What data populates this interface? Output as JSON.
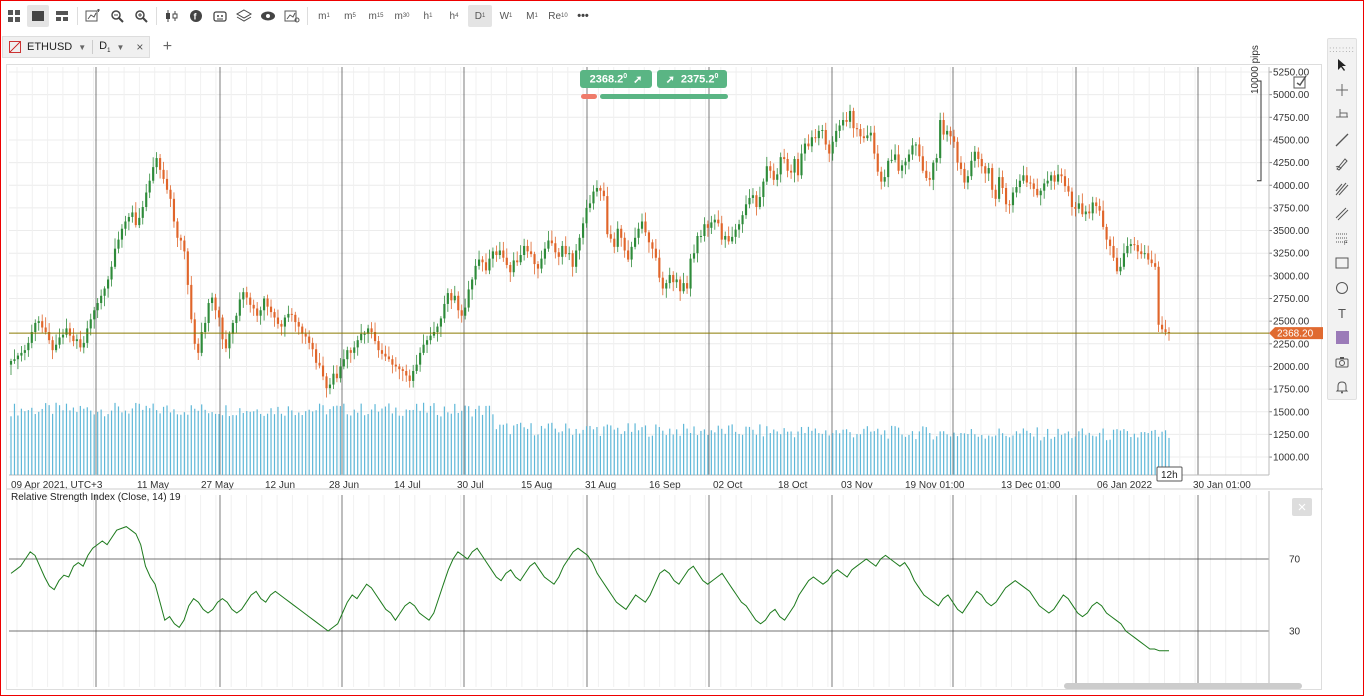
{
  "toolbar": {
    "timeframes": [
      {
        "main": "m",
        "sub": "1"
      },
      {
        "main": "m",
        "sub": "5"
      },
      {
        "main": "m",
        "sub": "15"
      },
      {
        "main": "m",
        "sub": "30"
      },
      {
        "main": "h",
        "sub": "1"
      },
      {
        "main": "h",
        "sub": "4"
      },
      {
        "main": "D",
        "sub": "1"
      },
      {
        "main": "W",
        "sub": "1"
      },
      {
        "main": "M",
        "sub": "1"
      },
      {
        "main": "Re",
        "sub": "10"
      }
    ],
    "active_timeframe_index": 6,
    "more_label": "•••"
  },
  "tab": {
    "symbol": "ETHUSD",
    "timeframe_main": "D",
    "timeframe_sub": "1",
    "caret": "▼",
    "close": "×",
    "add": "+"
  },
  "trade": {
    "sell_price": "2368.2",
    "sell_sup": "0",
    "buy_price": "2375.2",
    "buy_sup": "0"
  },
  "price_axis": {
    "ticks": [
      "5250.00",
      "5000.00",
      "4750.00",
      "4500.00",
      "4250.00",
      "4000.00",
      "3750.00",
      "3500.00",
      "3250.00",
      "3000.00",
      "2750.00",
      "2500.00",
      "2250.00",
      "2000.00",
      "1750.00",
      "1500.00",
      "1250.00",
      "1000.00"
    ],
    "current_price": "2368.20",
    "pips_label": "10000 pips"
  },
  "time_axis": {
    "labels": [
      "09 Apr 2021, UTC+3",
      "11 May",
      "27 May",
      "12 Jun",
      "28 Jun",
      "14 Jul",
      "30 Jul",
      "15 Aug",
      "31 Aug",
      "16 Sep",
      "02 Oct",
      "18 Oct",
      "03 Nov",
      "19 Nov 01:00",
      "13 Dec 01:00",
      "06 Jan 2022",
      "30 Jan 01:00"
    ],
    "cursor_label": "12h"
  },
  "indicator": {
    "title": "Relative Strength Index (Close, 14) 19",
    "levels": [
      "70",
      "30"
    ],
    "close": "×"
  },
  "colors": {
    "bull": "#2e8b3a",
    "bear": "#e0652a",
    "volume": "#5fb8d8",
    "rsi": "#1d7a1d",
    "price_line": "#8a7a00",
    "price_badge": "#e06a30",
    "trade_green": "#5ab584"
  },
  "chart_data": {
    "type": "candlestick",
    "price_range": [
      900,
      5300
    ],
    "closes": [
      2060,
      2080,
      2120,
      2150,
      2180,
      2260,
      2380,
      2480,
      2500,
      2430,
      2380,
      2290,
      2180,
      2240,
      2320,
      2350,
      2420,
      2340,
      2280,
      2300,
      2210,
      2260,
      2420,
      2520,
      2620,
      2700,
      2780,
      2860,
      2960,
      3100,
      3300,
      3400,
      3520,
      3600,
      3650,
      3700,
      3560,
      3640,
      3760,
      3920,
      4050,
      4200,
      4300,
      4170,
      4070,
      3950,
      3850,
      3600,
      3420,
      3390,
      3270,
      2900,
      2520,
      2250,
      2150,
      2380,
      2480,
      2700,
      2760,
      2620,
      2540,
      2300,
      2200,
      2360,
      2480,
      2560,
      2740,
      2820,
      2760,
      2680,
      2640,
      2560,
      2620,
      2750,
      2660,
      2600,
      2540,
      2470,
      2440,
      2540,
      2580,
      2570,
      2490,
      2440,
      2360,
      2330,
      2260,
      2190,
      2040,
      2010,
      1890,
      1760,
      1800,
      1920,
      1870,
      2000,
      2080,
      2180,
      2150,
      2210,
      2290,
      2360,
      2360,
      2420,
      2380,
      2280,
      2180,
      2140,
      2110,
      2080,
      2020,
      2000,
      1970,
      1950,
      1900,
      1840,
      1950,
      2020,
      2150,
      2240,
      2290,
      2340,
      2380,
      2440,
      2530,
      2690,
      2810,
      2730,
      2780,
      2620,
      2560,
      2650,
      2850,
      2960,
      3110,
      3180,
      3150,
      3060,
      3190,
      3270,
      3230,
      3280,
      3200,
      3120,
      3040,
      3170,
      3150,
      3230,
      3330,
      3270,
      3240,
      3130,
      3080,
      3190,
      3300,
      3390,
      3360,
      3260,
      3210,
      3330,
      3240,
      3250,
      3100,
      3280,
      3420,
      3580,
      3750,
      3800,
      3930,
      3970,
      3940,
      3880,
      3460,
      3410,
      3320,
      3520,
      3420,
      3280,
      3180,
      3320,
      3420,
      3520,
      3600,
      3480,
      3370,
      3300,
      3200,
      2980,
      2860,
      2920,
      3010,
      2930,
      2960,
      2830,
      2920,
      2860,
      3190,
      3250,
      3440,
      3440,
      3570,
      3530,
      3590,
      3620,
      3580,
      3400,
      3440,
      3380,
      3430,
      3510,
      3570,
      3670,
      3790,
      3860,
      3890,
      3760,
      3870,
      4040,
      4210,
      4160,
      4060,
      4120,
      4310,
      4290,
      4160,
      4140,
      4290,
      4110,
      4350,
      4460,
      4430,
      4530,
      4520,
      4600,
      4610,
      4450,
      4350,
      4480,
      4600,
      4660,
      4720,
      4700,
      4820,
      4630,
      4620,
      4540,
      4520,
      4550,
      4580,
      4350,
      4150,
      4040,
      4090,
      4270,
      4280,
      4340,
      4160,
      4220,
      4260,
      4340,
      4440,
      4450,
      4320,
      4160,
      4080,
      4060,
      4250,
      4300,
      4720,
      4560,
      4600,
      4540,
      4480,
      4250,
      4180,
      4030,
      4100,
      4270,
      4370,
      4290,
      4210,
      4130,
      4190,
      3950,
      3850,
      4090,
      3970,
      3790,
      3780,
      3920,
      3980,
      4050,
      4110,
      4030,
      4020,
      3960,
      3890,
      3940,
      4020,
      4050,
      4110,
      4040,
      4120,
      4100,
      3990,
      3930,
      3760,
      3740,
      3800,
      3680,
      3710,
      3690,
      3810,
      3770,
      3720,
      3540,
      3400,
      3330,
      3200,
      3050,
      3100,
      3250,
      3330,
      3350,
      3340,
      3270,
      3240,
      3250,
      3180,
      3140,
      3100,
      2460,
      2410,
      2380,
      2370
    ],
    "rsi": [
      62,
      64,
      66,
      70,
      74,
      72,
      66,
      60,
      55,
      53,
      58,
      61,
      60,
      66,
      68,
      66,
      72,
      76,
      78,
      80,
      78,
      82,
      86,
      87,
      88,
      86,
      84,
      78,
      66,
      60,
      56,
      46,
      36,
      38,
      34,
      32,
      36,
      44,
      48,
      46,
      42,
      40,
      42,
      46,
      48,
      46,
      42,
      40,
      42,
      46,
      50,
      52,
      48,
      46,
      50,
      52,
      50,
      48,
      46,
      44,
      42,
      40,
      38,
      36,
      34,
      32,
      30,
      32,
      34,
      40,
      46,
      50,
      48,
      52,
      56,
      54,
      50,
      46,
      42,
      40,
      36,
      40,
      44,
      46,
      44,
      40,
      38,
      36,
      40,
      48,
      56,
      64,
      70,
      74,
      72,
      70,
      74,
      76,
      72,
      68,
      64,
      60,
      58,
      62,
      64,
      60,
      58,
      62,
      66,
      68,
      64,
      60,
      58,
      56,
      60,
      66,
      70,
      74,
      76,
      74,
      72,
      68,
      62,
      58,
      54,
      50,
      46,
      44,
      42,
      46,
      50,
      48,
      46,
      50,
      56,
      62,
      64,
      62,
      58,
      56,
      60,
      64,
      66,
      62,
      58,
      56,
      58,
      60,
      62,
      58,
      54,
      50,
      46,
      44,
      40,
      36,
      34,
      36,
      40,
      42,
      38,
      36,
      40,
      44,
      50,
      54,
      58,
      60,
      58,
      56,
      58,
      62,
      64,
      62,
      60,
      64,
      66,
      68,
      70,
      68,
      66,
      70,
      72,
      70,
      68,
      66,
      68,
      64,
      58,
      54,
      50,
      48,
      46,
      44,
      48,
      50,
      46,
      42,
      40,
      44,
      48,
      52,
      50,
      46,
      44,
      46,
      50,
      54,
      56,
      58,
      56,
      54,
      52,
      48,
      44,
      42,
      40,
      42,
      46,
      50,
      48,
      44,
      40,
      38,
      40,
      44,
      46,
      44,
      40,
      38,
      36,
      34,
      30,
      28,
      26,
      24,
      22,
      20,
      20,
      19,
      19,
      19
    ],
    "levels": [
      70,
      30
    ]
  }
}
